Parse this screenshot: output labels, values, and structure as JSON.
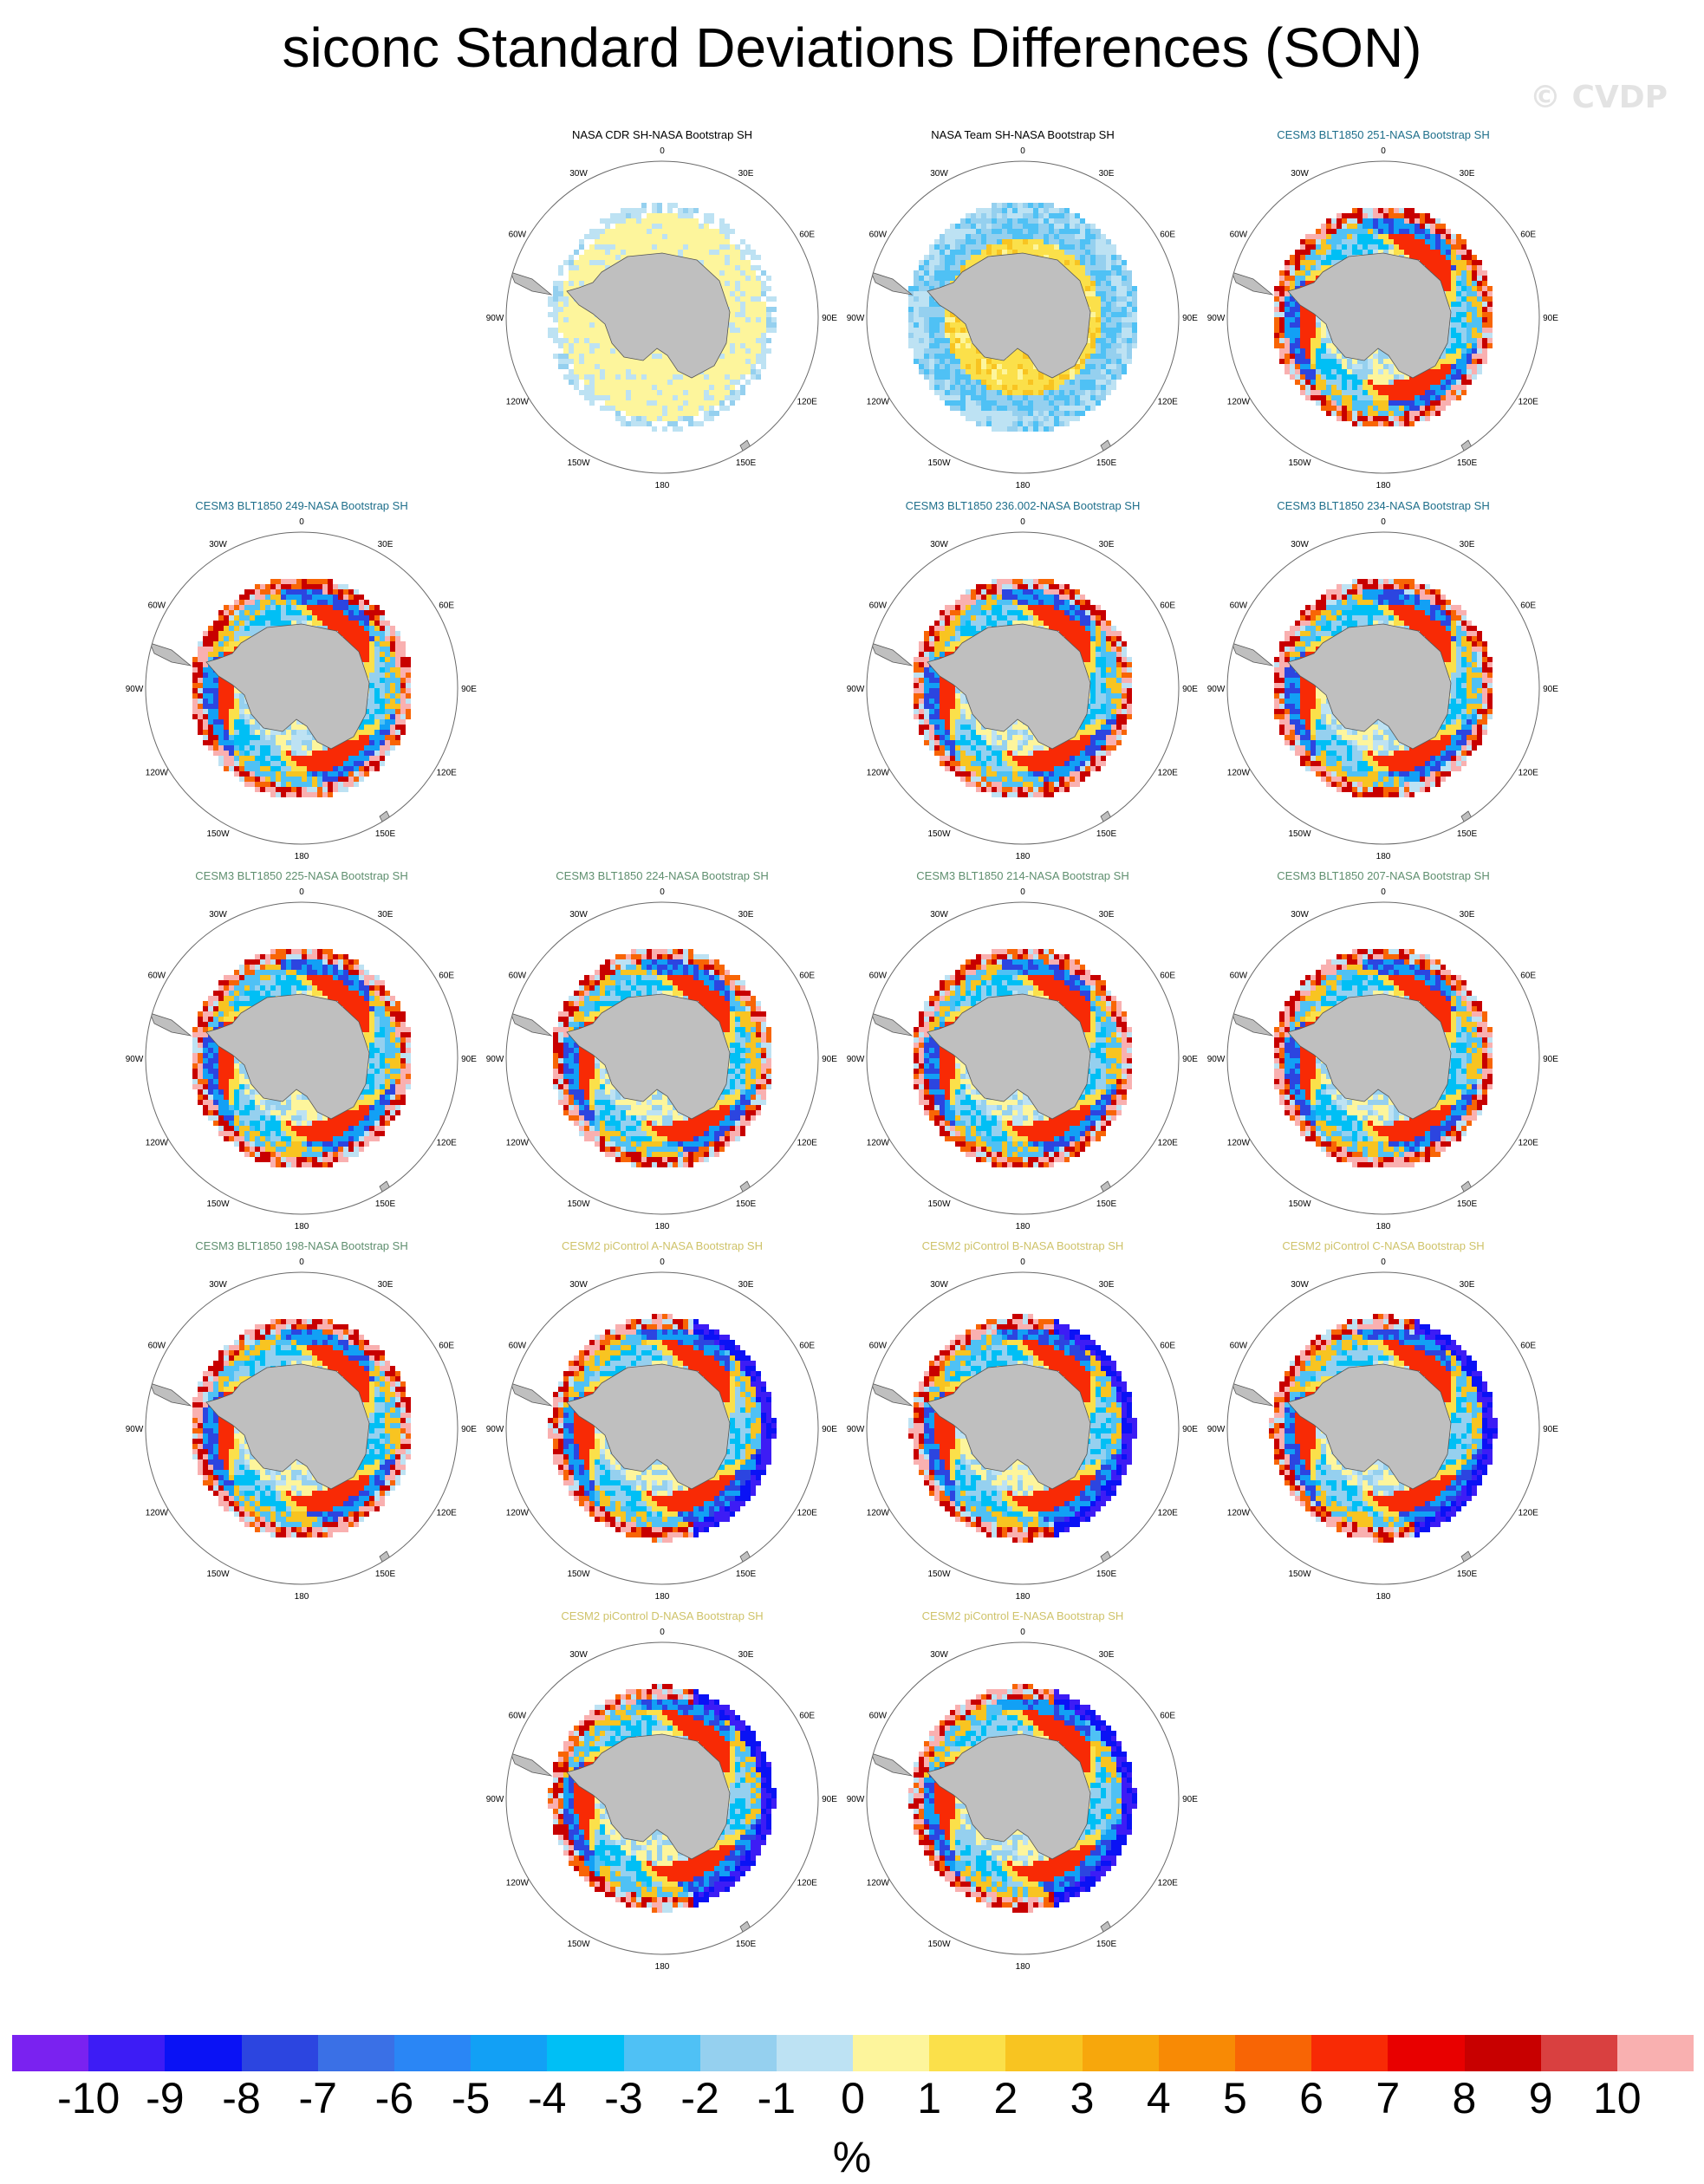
{
  "title": "siconc Standard Deviations Differences (SON)",
  "watermark": "© CVDP",
  "lon_labels": {
    "n0": "0",
    "n30e": "30E",
    "n60e": "60E",
    "n90e": "90E",
    "n120e": "120E",
    "n150e": "150E",
    "n180": "180",
    "n150w": "150W",
    "n120w": "120W",
    "n90w": "90W",
    "n60w": "60W",
    "n30w": "30W"
  },
  "colors": {
    "obs": "#000000",
    "blt_blue": "#1f6f8b",
    "blt_green": "#5f8f6f",
    "cesm2": "#cfc36a",
    "land": "#bfbfbf",
    "circle": "#6a6a6a"
  },
  "panels": [
    {
      "title": "NASA CDR SH-NASA Bootstrap SH",
      "color": "obs",
      "pattern": "mild"
    },
    {
      "title": "NASA Team SH-NASA Bootstrap SH",
      "color": "obs",
      "pattern": "team"
    },
    {
      "title": "CESM3 BLT1850 251-NASA Bootstrap SH",
      "color": "blt_blue",
      "pattern": "model"
    },
    {
      "title": "CESM3 BLT1850 249-NASA Bootstrap SH",
      "color": "blt_blue",
      "pattern": "model"
    },
    {
      "title": "CESM3 BLT1850 236.002-NASA Bootstrap SH",
      "color": "blt_blue",
      "pattern": "model"
    },
    {
      "title": "CESM3 BLT1850 234-NASA Bootstrap SH",
      "color": "blt_blue",
      "pattern": "model"
    },
    {
      "title": "CESM3 BLT1850 225-NASA Bootstrap SH",
      "color": "blt_green",
      "pattern": "model"
    },
    {
      "title": "CESM3 BLT1850 224-NASA Bootstrap SH",
      "color": "blt_green",
      "pattern": "model"
    },
    {
      "title": "CESM3 BLT1850 214-NASA Bootstrap SH",
      "color": "blt_green",
      "pattern": "model"
    },
    {
      "title": "CESM3 BLT1850 207-NASA Bootstrap SH",
      "color": "blt_green",
      "pattern": "model"
    },
    {
      "title": "CESM3 BLT1850 198-NASA Bootstrap SH",
      "color": "blt_green",
      "pattern": "model"
    },
    {
      "title": "CESM2 piControl A-NASA Bootstrap SH",
      "color": "cesm2",
      "pattern": "cesm2"
    },
    {
      "title": "CESM2 piControl B-NASA Bootstrap SH",
      "color": "cesm2",
      "pattern": "cesm2"
    },
    {
      "title": "CESM2 piControl C-NASA Bootstrap SH",
      "color": "cesm2",
      "pattern": "cesm2"
    },
    {
      "title": "CESM2 piControl D-NASA Bootstrap SH",
      "color": "cesm2",
      "pattern": "cesm2"
    },
    {
      "title": "CESM2 piControl E-NASA Bootstrap SH",
      "color": "cesm2",
      "pattern": "cesm2"
    }
  ],
  "colorbar": {
    "colors": [
      "#7a22f0",
      "#3d1cf5",
      "#0a12f5",
      "#2c45e0",
      "#3a70e6",
      "#2a86f5",
      "#12a0f5",
      "#00bff5",
      "#4fc1f5",
      "#95d0ef",
      "#bde2f3",
      "#fdf59c",
      "#fbe04a",
      "#f8c421",
      "#f7a70c",
      "#f88a05",
      "#f86505",
      "#f82a05",
      "#e80000",
      "#c80000",
      "#d94040",
      "#f9b0b0"
    ],
    "labels": [
      "-10",
      "-9",
      "-8",
      "-7",
      "-6",
      "-5",
      "-4",
      "-3",
      "-2",
      "-1",
      "0",
      "1",
      "2",
      "3",
      "4",
      "5",
      "6",
      "7",
      "8",
      "9",
      "10"
    ],
    "units": "%"
  }
}
